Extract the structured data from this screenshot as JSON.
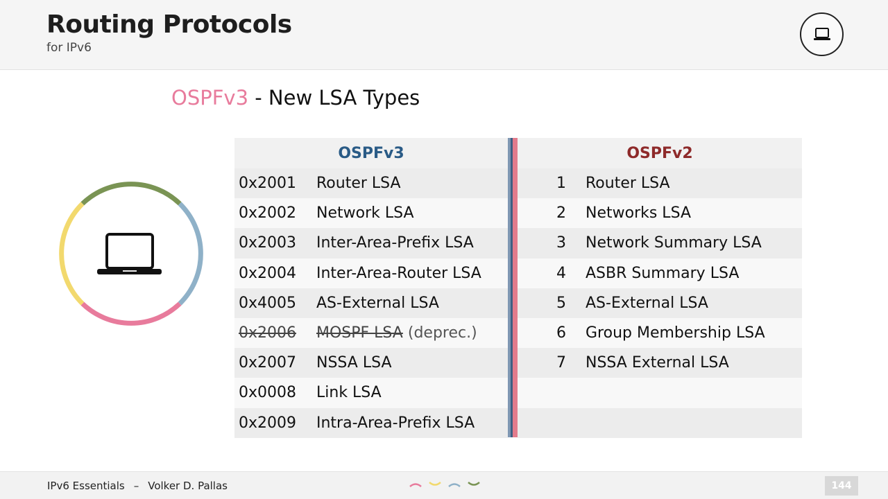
{
  "header": {
    "title": "Routing Protocols",
    "subtitle": "for IPv6",
    "icon": "laptop-icon"
  },
  "slide": {
    "title_accent": "OSPFv3",
    "title_rest": " - New LSA Types"
  },
  "decoration": {
    "icon": "laptop-icon",
    "ring_colors": [
      "#7a9454",
      "#8fb1c8",
      "#e87b9c",
      "#f2d96e"
    ]
  },
  "table": {
    "ospfv3": {
      "heading": "OSPFv3",
      "rows": [
        {
          "code": "0x2001",
          "name": "Router LSA"
        },
        {
          "code": "0x2002",
          "name": "Network LSA"
        },
        {
          "code": "0x2003",
          "name": "Inter-Area-Prefix LSA"
        },
        {
          "code": "0x2004",
          "name": "Inter-Area-Router LSA"
        },
        {
          "code": "0x4005",
          "name": "AS-External LSA"
        },
        {
          "code": "0x2006",
          "name": "MOSPF LSA",
          "note": "(deprec.)"
        },
        {
          "code": "0x2007",
          "name": "NSSA LSA"
        },
        {
          "code": "0x0008",
          "name": "Link LSA"
        },
        {
          "code": "0x2009",
          "name": "Intra-Area-Prefix LSA"
        }
      ]
    },
    "ospfv2": {
      "heading": "OSPFv2",
      "rows": [
        {
          "num": "1",
          "name": "Router LSA"
        },
        {
          "num": "2",
          "name": "Networks LSA"
        },
        {
          "num": "3",
          "name": "Network Summary LSA"
        },
        {
          "num": "4",
          "name": "ASBR Summary LSA"
        },
        {
          "num": "5",
          "name": "AS-External LSA"
        },
        {
          "num": "6",
          "name": "Group Membership LSA"
        },
        {
          "num": "7",
          "name": "NSSA External LSA"
        },
        {
          "num": "",
          "name": ""
        },
        {
          "num": "",
          "name": ""
        }
      ]
    },
    "colors": {
      "v3": "#2a5b86",
      "v2": "#8e2a2a",
      "accent": "#e87b9c"
    }
  },
  "footer": {
    "course": "IPv6 Essentials",
    "separator": "–",
    "author": "Volker D. Pallas",
    "page": "144",
    "dot_colors": [
      "#e87b9c",
      "#f2d96e",
      "#8fb1c8",
      "#7a9454"
    ]
  }
}
